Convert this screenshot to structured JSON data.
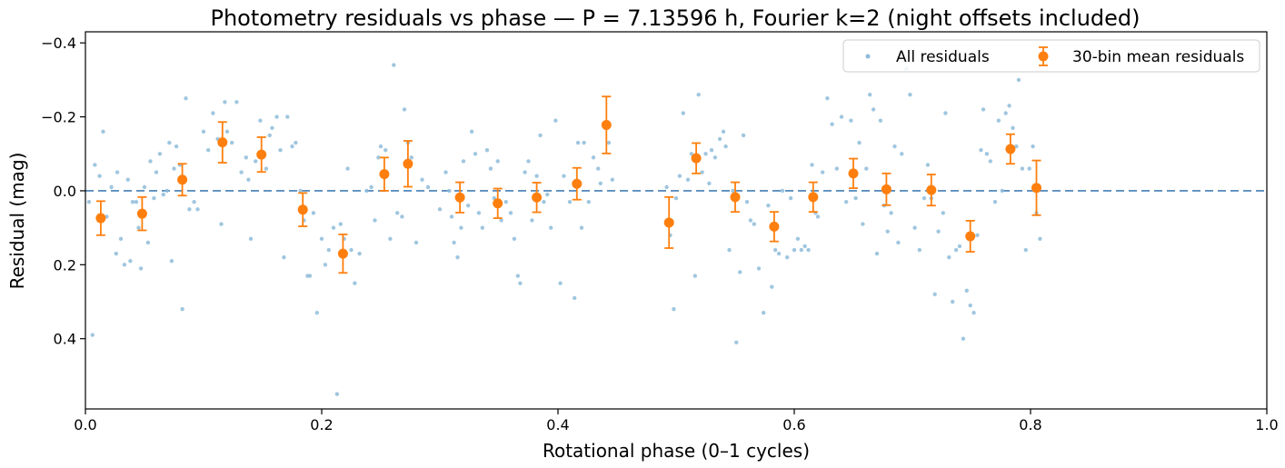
{
  "chart_data": {
    "type": "scatter",
    "title": "Photometry residuals vs phase — P = 7.13596 h, Fourier k=2 (night offsets included)",
    "xlabel": "Rotational phase (0–1 cycles)",
    "ylabel": "Residual (mag)",
    "xlim": [
      0.0,
      1.0
    ],
    "ylim": [
      0.59,
      -0.43
    ],
    "y_inverted": true,
    "x_ticks": [
      0.0,
      0.2,
      0.4,
      0.6,
      0.8,
      1.0
    ],
    "x_tick_labels": [
      "0.0",
      "0.2",
      "0.4",
      "0.6",
      "0.8",
      "1.0"
    ],
    "y_ticks": [
      -0.4,
      -0.2,
      0.0,
      0.2,
      0.4
    ],
    "y_tick_labels": [
      "−0.4",
      "−0.2",
      "0.0",
      "0.2",
      "0.4"
    ],
    "reference_line": 0.0,
    "legend_position": "top-right",
    "legend": [
      "All residuals",
      "30-bin mean residuals"
    ],
    "colors": {
      "scatter": "#8fbcd9",
      "bins": "#ff7f0e",
      "refline": "#5b8fbf"
    },
    "series": [
      {
        "name": "All residuals",
        "points": [
          [
            0.003,
            0.03
          ],
          [
            0.006,
            0.39
          ],
          [
            0.008,
            -0.07
          ],
          [
            0.012,
            -0.04
          ],
          [
            0.015,
            -0.16
          ],
          [
            0.018,
            0.07
          ],
          [
            0.022,
            -0.01
          ],
          [
            0.026,
            0.17
          ],
          [
            0.027,
            -0.05
          ],
          [
            0.03,
            0.13
          ],
          [
            0.033,
            0.2
          ],
          [
            0.036,
            -0.03
          ],
          [
            0.038,
            0.19
          ],
          [
            0.04,
            0.03
          ],
          [
            0.043,
            0.03
          ],
          [
            0.045,
            0.1
          ],
          [
            0.047,
            0.21
          ],
          [
            0.05,
            -0.01
          ],
          [
            0.053,
            0.14
          ],
          [
            0.055,
            -0.08
          ],
          [
            0.058,
            0.02
          ],
          [
            0.06,
            -0.05
          ],
          [
            0.063,
            -0.1
          ],
          [
            0.066,
            0.01
          ],
          [
            0.069,
            0.0
          ],
          [
            0.071,
            -0.13
          ],
          [
            0.073,
            0.19
          ],
          [
            0.075,
            -0.06
          ],
          [
            0.077,
            -0.12
          ],
          [
            0.08,
            -0.07
          ],
          [
            0.082,
            0.32
          ],
          [
            0.085,
            -0.25
          ],
          [
            0.088,
            0.05
          ],
          [
            0.092,
            0.03
          ],
          [
            0.095,
            0.05
          ],
          [
            0.1,
            -0.16
          ],
          [
            0.104,
            -0.11
          ],
          [
            0.108,
            -0.21
          ],
          [
            0.112,
            -0.14
          ],
          [
            0.115,
            0.09
          ],
          [
            0.118,
            -0.24
          ],
          [
            0.12,
            -0.16
          ],
          [
            0.124,
            -0.13
          ],
          [
            0.128,
            -0.24
          ],
          [
            0.132,
            -0.05
          ],
          [
            0.136,
            -0.09
          ],
          [
            0.138,
            -0.03
          ],
          [
            0.14,
            0.13
          ],
          [
            0.144,
            -0.08
          ],
          [
            0.148,
            -0.19
          ],
          [
            0.15,
            -0.09
          ],
          [
            0.153,
            -0.06
          ],
          [
            0.156,
            -0.15
          ],
          [
            0.158,
            -0.17
          ],
          [
            0.162,
            -0.2
          ],
          [
            0.165,
            -0.11
          ],
          [
            0.168,
            0.18
          ],
          [
            0.171,
            -0.2
          ],
          [
            0.175,
            -0.12
          ],
          [
            0.178,
            -0.13
          ],
          [
            0.182,
            0.0
          ],
          [
            0.185,
            0.08
          ],
          [
            0.188,
            0.23
          ],
          [
            0.19,
            0.23
          ],
          [
            0.193,
            0.06
          ],
          [
            0.196,
            0.33
          ],
          [
            0.2,
            0.13
          ],
          [
            0.203,
            0.2
          ],
          [
            0.206,
            0.16
          ],
          [
            0.21,
            0.1
          ],
          [
            0.213,
            0.55
          ],
          [
            0.216,
            0.09
          ],
          [
            0.219,
            0.13
          ],
          [
            0.222,
            -0.06
          ],
          [
            0.225,
            0.16
          ],
          [
            0.228,
            0.25
          ],
          [
            0.232,
            0.17
          ],
          [
            0.238,
            0.0
          ],
          [
            0.242,
            -0.01
          ],
          [
            0.245,
            0.08
          ],
          [
            0.248,
            -0.09
          ],
          [
            0.25,
            -0.12
          ],
          [
            0.254,
            -0.11
          ],
          [
            0.258,
            0.13
          ],
          [
            0.261,
            -0.34
          ],
          [
            0.264,
            0.06
          ],
          [
            0.268,
            0.07
          ],
          [
            0.27,
            -0.22
          ],
          [
            0.273,
            -0.13
          ],
          [
            0.276,
            -0.09
          ],
          [
            0.28,
            0.14
          ],
          [
            0.285,
            -0.03
          ],
          [
            0.29,
            -0.01
          ],
          [
            0.3,
            0.05
          ],
          [
            0.305,
            -0.05
          ],
          [
            0.308,
            0.0
          ],
          [
            0.31,
            0.07
          ],
          [
            0.312,
            0.14
          ],
          [
            0.315,
            0.18
          ],
          [
            0.318,
            0.1
          ],
          [
            0.32,
            -0.08
          ],
          [
            0.324,
            0.04
          ],
          [
            0.327,
            -0.16
          ],
          [
            0.33,
            -0.1
          ],
          [
            0.333,
            0.06
          ],
          [
            0.336,
            0.1
          ],
          [
            0.34,
            -0.11
          ],
          [
            0.343,
            -0.06
          ],
          [
            0.346,
            0.02
          ],
          [
            0.349,
            -0.08
          ],
          [
            0.352,
            0.08
          ],
          [
            0.356,
            0.03
          ],
          [
            0.36,
            0.06
          ],
          [
            0.363,
            0.13
          ],
          [
            0.366,
            0.23
          ],
          [
            0.368,
            0.25
          ],
          [
            0.372,
            -0.05
          ],
          [
            0.375,
            -0.08
          ],
          [
            0.378,
            0.08
          ],
          [
            0.382,
            -0.04
          ],
          [
            0.385,
            -0.15
          ],
          [
            0.388,
            0.03
          ],
          [
            0.391,
            0.01
          ],
          [
            0.394,
            0.1
          ],
          [
            0.398,
            -0.19
          ],
          [
            0.402,
            0.25
          ],
          [
            0.405,
            -0.04
          ],
          [
            0.41,
            0.03
          ],
          [
            0.414,
            0.29
          ],
          [
            0.417,
            -0.13
          ],
          [
            0.42,
            0.1
          ],
          [
            0.422,
            -0.13
          ],
          [
            0.426,
            0.03
          ],
          [
            0.43,
            -0.09
          ],
          [
            0.434,
            -0.06
          ],
          [
            0.436,
            -0.02
          ],
          [
            0.44,
            -0.17
          ],
          [
            0.443,
            -0.13
          ],
          [
            0.446,
            -0.03
          ],
          [
            0.492,
            -0.01
          ],
          [
            0.495,
            0.12
          ],
          [
            0.498,
            0.32
          ],
          [
            0.5,
            0.02
          ],
          [
            0.503,
            -0.04
          ],
          [
            0.506,
            -0.21
          ],
          [
            0.51,
            -0.03
          ],
          [
            0.513,
            -0.1
          ],
          [
            0.516,
            0.23
          ],
          [
            0.519,
            -0.26
          ],
          [
            0.522,
            -0.05
          ],
          [
            0.525,
            -0.1
          ],
          [
            0.528,
            -0.02
          ],
          [
            0.53,
            -0.11
          ],
          [
            0.533,
            -0.09
          ],
          [
            0.537,
            -0.14
          ],
          [
            0.54,
            -0.16
          ],
          [
            0.542,
            -0.12
          ],
          [
            0.545,
            0.16
          ],
          [
            0.548,
            0.0
          ],
          [
            0.551,
            0.41
          ],
          [
            0.554,
            0.22
          ],
          [
            0.557,
            -0.15
          ],
          [
            0.56,
            0.03
          ],
          [
            0.563,
            0.08
          ],
          [
            0.566,
            0.09
          ],
          [
            0.57,
            0.21
          ],
          [
            0.574,
            0.33
          ],
          [
            0.578,
            0.04
          ],
          [
            0.581,
            0.26
          ],
          [
            0.584,
            0.16
          ],
          [
            0.587,
            0.17
          ],
          [
            0.59,
            0.0
          ],
          [
            0.594,
            0.18
          ],
          [
            0.597,
            0.02
          ],
          [
            0.6,
            0.16
          ],
          [
            0.603,
            0.13
          ],
          [
            0.606,
            0.16
          ],
          [
            0.609,
            0.15
          ],
          [
            0.612,
            0.16
          ],
          [
            0.615,
            -0.07
          ],
          [
            0.618,
            0.06
          ],
          [
            0.62,
            0.07
          ],
          [
            0.624,
            -0.05
          ],
          [
            0.628,
            -0.25
          ],
          [
            0.632,
            -0.18
          ],
          [
            0.636,
            -0.06
          ],
          [
            0.64,
            -0.2
          ],
          [
            0.644,
            0.03
          ],
          [
            0.648,
            -0.19
          ],
          [
            0.652,
            0.02
          ],
          [
            0.655,
            -0.13
          ],
          [
            0.658,
            0.09
          ],
          [
            0.661,
            -0.06
          ],
          [
            0.664,
            -0.26
          ],
          [
            0.667,
            -0.22
          ],
          [
            0.67,
            0.17
          ],
          [
            0.673,
            -0.19
          ],
          [
            0.676,
            0.04
          ],
          [
            0.679,
            0.11
          ],
          [
            0.682,
            0.06
          ],
          [
            0.685,
            -0.12
          ],
          [
            0.688,
            0.14
          ],
          [
            0.691,
            -0.1
          ],
          [
            0.695,
            -0.33
          ],
          [
            0.698,
            -0.26
          ],
          [
            0.702,
            0.1
          ],
          [
            0.706,
            0.16
          ],
          [
            0.71,
            0.02
          ],
          [
            0.713,
            -0.07
          ],
          [
            0.716,
            0.02
          ],
          [
            0.719,
            0.28
          ],
          [
            0.722,
            0.11
          ],
          [
            0.726,
            0.06
          ],
          [
            0.728,
            -0.21
          ],
          [
            0.731,
            0.18
          ],
          [
            0.734,
            0.3
          ],
          [
            0.737,
            0.16
          ],
          [
            0.74,
            0.15
          ],
          [
            0.743,
            0.4
          ],
          [
            0.746,
            0.27
          ],
          [
            0.749,
            0.31
          ],
          [
            0.752,
            0.33
          ],
          [
            0.755,
            0.12
          ],
          [
            0.758,
            -0.11
          ],
          [
            0.76,
            -0.22
          ],
          [
            0.763,
            -0.1
          ],
          [
            0.766,
            -0.08
          ],
          [
            0.77,
            0.03
          ],
          [
            0.773,
            -0.19
          ],
          [
            0.776,
            0.0
          ],
          [
            0.779,
            -0.21
          ],
          [
            0.782,
            -0.23
          ],
          [
            0.785,
            -0.17
          ],
          [
            0.788,
            -0.12
          ],
          [
            0.79,
            -0.3
          ],
          [
            0.793,
            -0.06
          ],
          [
            0.796,
            0.16
          ],
          [
            0.799,
            -0.06
          ],
          [
            0.802,
            -0.12
          ],
          [
            0.805,
            0.06
          ],
          [
            0.808,
            0.13
          ]
        ]
      },
      {
        "name": "30-bin mean residuals",
        "points": [
          {
            "x": 0.013,
            "y": 0.074,
            "err": 0.046
          },
          {
            "x": 0.048,
            "y": 0.062,
            "err": 0.045
          },
          {
            "x": 0.082,
            "y": -0.03,
            "err": 0.043
          },
          {
            "x": 0.116,
            "y": -0.131,
            "err": 0.055
          },
          {
            "x": 0.149,
            "y": -0.098,
            "err": 0.047
          },
          {
            "x": 0.184,
            "y": 0.051,
            "err": 0.045
          },
          {
            "x": 0.218,
            "y": 0.17,
            "err": 0.052
          },
          {
            "x": 0.253,
            "y": -0.045,
            "err": 0.045
          },
          {
            "x": 0.273,
            "y": -0.073,
            "err": 0.062
          },
          {
            "x": 0.317,
            "y": 0.018,
            "err": 0.041
          },
          {
            "x": 0.349,
            "y": 0.034,
            "err": 0.04
          },
          {
            "x": 0.382,
            "y": 0.018,
            "err": 0.04
          },
          {
            "x": 0.416,
            "y": -0.019,
            "err": 0.043
          },
          {
            "x": 0.441,
            "y": -0.178,
            "err": 0.077
          },
          {
            "x": 0.494,
            "y": 0.086,
            "err": 0.069
          },
          {
            "x": 0.517,
            "y": -0.088,
            "err": 0.041
          },
          {
            "x": 0.55,
            "y": 0.017,
            "err": 0.04
          },
          {
            "x": 0.583,
            "y": 0.097,
            "err": 0.04
          },
          {
            "x": 0.616,
            "y": 0.017,
            "err": 0.04
          },
          {
            "x": 0.65,
            "y": -0.047,
            "err": 0.04
          },
          {
            "x": 0.678,
            "y": -0.004,
            "err": 0.043
          },
          {
            "x": 0.716,
            "y": -0.002,
            "err": 0.042
          },
          {
            "x": 0.749,
            "y": 0.123,
            "err": 0.042
          },
          {
            "x": 0.783,
            "y": -0.113,
            "err": 0.04
          },
          {
            "x": 0.805,
            "y": -0.008,
            "err": 0.074
          }
        ]
      }
    ]
  }
}
